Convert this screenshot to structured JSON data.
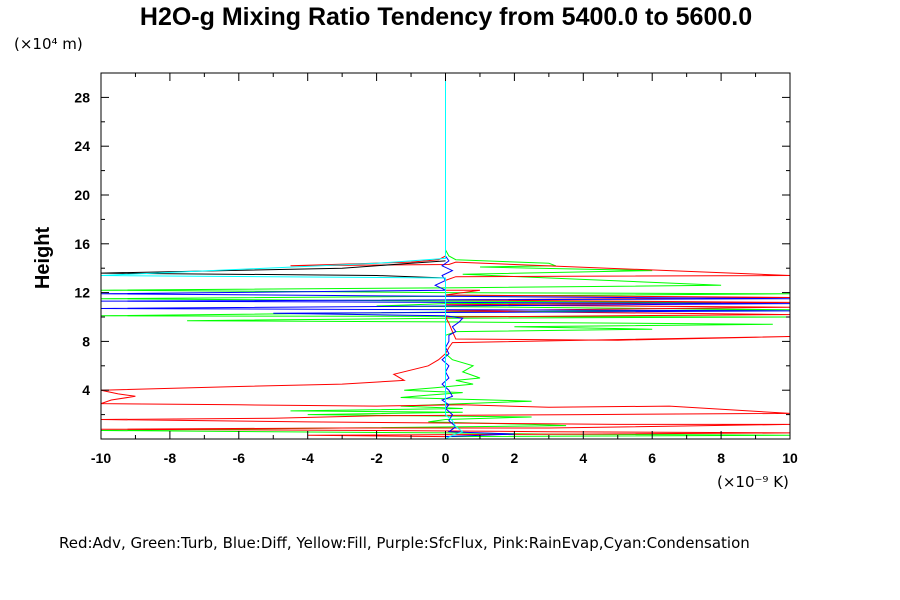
{
  "chart_data": {
    "type": "line",
    "title": "H2O-g Mixing Ratio Tendency from 5400.0 to 5600.0",
    "ylabel": "Height",
    "y_multiplier": "(×10⁴ m)",
    "x_multiplier": "(×10⁻⁹ K)",
    "xlim": [
      -10,
      10
    ],
    "ylim": [
      0,
      30
    ],
    "x_ticks": [
      "-10",
      "-8",
      "-6",
      "-4",
      "-2",
      "0",
      "2",
      "4",
      "6",
      "8",
      "10"
    ],
    "y_ticks": [
      "4",
      "8",
      "12",
      "16",
      "20",
      "24",
      "28"
    ],
    "grid": false,
    "legend_text": "Red:Adv, Green:Turb, Blue:Diff, Yellow:Fill, Purple:SfcFlux, Pink:RainEvap,Cyan:Condensation",
    "series": [
      {
        "name": "Red:Adv",
        "color": "#ff0000",
        "points": [
          [
            0,
            15.0
          ],
          [
            -0.2,
            14.7
          ],
          [
            -1.0,
            14.5
          ],
          [
            -4.5,
            14.2
          ],
          [
            0.1,
            14.3
          ],
          [
            0.3,
            14.5
          ],
          [
            10,
            13.4
          ],
          [
            0.3,
            13.3
          ],
          [
            0,
            13.0
          ],
          [
            0,
            12.2
          ],
          [
            1,
            12.2
          ],
          [
            0,
            11.8
          ],
          [
            10,
            11.6
          ],
          [
            0,
            11.4
          ],
          [
            10,
            11.2
          ],
          [
            0,
            11.0
          ],
          [
            10,
            10.8
          ],
          [
            0,
            10.5
          ],
          [
            10,
            10.2
          ],
          [
            0,
            10.0
          ],
          [
            0.1,
            9.5
          ],
          [
            0.2,
            8.8
          ],
          [
            0.3,
            8.2
          ],
          [
            5,
            8.1
          ],
          [
            10,
            8.4
          ],
          [
            0.2,
            7.9
          ],
          [
            0.1,
            7.5
          ],
          [
            0,
            7.0
          ],
          [
            -0.2,
            6.5
          ],
          [
            -0.5,
            6.0
          ],
          [
            -1.5,
            5.3
          ],
          [
            -1.2,
            4.8
          ],
          [
            -3,
            4.5
          ],
          [
            -6,
            4.3
          ],
          [
            -10,
            4.0
          ],
          [
            -9.5,
            3.7
          ],
          [
            -9,
            3.5
          ],
          [
            -9.7,
            3.2
          ],
          [
            -10,
            2.9
          ],
          [
            -6,
            2.8
          ],
          [
            -2,
            2.7
          ],
          [
            0.5,
            2.8
          ],
          [
            3,
            2.6
          ],
          [
            6.5,
            2.7
          ],
          [
            10,
            2.1
          ],
          [
            4,
            2.0
          ],
          [
            -2,
            1.9
          ],
          [
            -5,
            1.7
          ],
          [
            -10,
            1.6
          ],
          [
            -4,
            1.4
          ],
          [
            0.5,
            1.3
          ],
          [
            5,
            1.2
          ],
          [
            10,
            1.2
          ],
          [
            3,
            0.9
          ],
          [
            -3,
            0.9
          ],
          [
            -10,
            0.8
          ],
          [
            -2,
            0.7
          ],
          [
            3,
            0.6
          ],
          [
            10,
            0.5
          ],
          [
            4,
            0.4
          ],
          [
            -4,
            0.3
          ],
          [
            0,
            0.2
          ],
          [
            0,
            0
          ]
        ]
      },
      {
        "name": "Green:Turb",
        "color": "#00ff00",
        "points": [
          [
            0,
            15.5
          ],
          [
            0.1,
            15.0
          ],
          [
            0.3,
            14.7
          ],
          [
            3,
            14.4
          ],
          [
            3.2,
            14.2
          ],
          [
            1,
            14.1
          ],
          [
            6,
            13.8
          ],
          [
            0.5,
            13.5
          ],
          [
            8,
            12.6
          ],
          [
            0.5,
            12.4
          ],
          [
            -10,
            12.2
          ],
          [
            0,
            12.0
          ],
          [
            10,
            11.9
          ],
          [
            0,
            11.7
          ],
          [
            -10,
            11.5
          ],
          [
            0,
            11.3
          ],
          [
            8,
            11.2
          ],
          [
            0,
            11.1
          ],
          [
            -2,
            10.9
          ],
          [
            10,
            10.6
          ],
          [
            0,
            10.4
          ],
          [
            -10,
            10.1
          ],
          [
            10,
            10.0
          ],
          [
            0,
            9.9
          ],
          [
            -7.5,
            9.7
          ],
          [
            0,
            9.6
          ],
          [
            9.5,
            9.4
          ],
          [
            2,
            9.2
          ],
          [
            6,
            9.0
          ],
          [
            0.3,
            8.8
          ],
          [
            0,
            8.5
          ],
          [
            0,
            7.0
          ],
          [
            0.2,
            6.5
          ],
          [
            0.8,
            6.0
          ],
          [
            0.5,
            5.5
          ],
          [
            1,
            5.0
          ],
          [
            0.3,
            4.8
          ],
          [
            0.8,
            4.5
          ],
          [
            -0.3,
            4.2
          ],
          [
            -1.2,
            4.0
          ],
          [
            0.5,
            3.8
          ],
          [
            -0.5,
            3.6
          ],
          [
            -1.3,
            3.4
          ],
          [
            0,
            3.3
          ],
          [
            2.5,
            3.1
          ],
          [
            0.5,
            2.9
          ],
          [
            -1.3,
            2.7
          ],
          [
            0.5,
            2.5
          ],
          [
            -4.5,
            2.3
          ],
          [
            0.5,
            2.2
          ],
          [
            -4,
            2.0
          ],
          [
            2.5,
            1.8
          ],
          [
            0,
            1.6
          ],
          [
            -0.5,
            1.4
          ],
          [
            2.5,
            1.2
          ],
          [
            3.5,
            1.1
          ],
          [
            -3,
            0.9
          ],
          [
            -10,
            0.7
          ],
          [
            -5,
            0.6
          ],
          [
            0,
            0.5
          ],
          [
            3,
            0.4
          ],
          [
            10,
            0.3
          ],
          [
            0,
            0.2
          ],
          [
            0,
            0
          ]
        ]
      },
      {
        "name": "Blue:Diff",
        "color": "#0000ff",
        "points": [
          [
            0,
            15.0
          ],
          [
            0.1,
            14.6
          ],
          [
            -0.1,
            14.2
          ],
          [
            0.2,
            13.8
          ],
          [
            -0.1,
            13.4
          ],
          [
            0,
            13.0
          ],
          [
            -0.3,
            12.6
          ],
          [
            0,
            12.2
          ],
          [
            -10,
            11.9
          ],
          [
            0,
            11.7
          ],
          [
            10,
            11.5
          ],
          [
            -10,
            11.3
          ],
          [
            10,
            11.1
          ],
          [
            0,
            10.9
          ],
          [
            -10,
            10.7
          ],
          [
            10,
            10.5
          ],
          [
            -5,
            10.3
          ],
          [
            0,
            10.1
          ],
          [
            0.5,
            9.9
          ],
          [
            0.4,
            9.6
          ],
          [
            0.2,
            9.2
          ],
          [
            0.3,
            8.8
          ],
          [
            0.1,
            8.5
          ],
          [
            0.1,
            8.0
          ],
          [
            0,
            7.5
          ],
          [
            0.1,
            7.0
          ],
          [
            -0.1,
            6.5
          ],
          [
            0.1,
            6.0
          ],
          [
            0,
            5.5
          ],
          [
            0.1,
            5.0
          ],
          [
            -0.1,
            4.5
          ],
          [
            0.1,
            4.0
          ],
          [
            0.2,
            3.5
          ],
          [
            -0.1,
            3.2
          ],
          [
            0.1,
            2.8
          ],
          [
            0,
            2.5
          ],
          [
            0.2,
            2.0
          ],
          [
            0.1,
            1.5
          ],
          [
            0.3,
            1.0
          ],
          [
            0.1,
            0.6
          ],
          [
            2,
            0.4
          ],
          [
            0,
            0.2
          ],
          [
            0,
            0
          ]
        ]
      },
      {
        "name": "Black",
        "color": "#000000",
        "points": [
          [
            0,
            14.6
          ],
          [
            -1,
            14.4
          ],
          [
            -3,
            14.0
          ],
          [
            -10,
            13.6
          ],
          [
            -2,
            13.4
          ],
          [
            0,
            13.2
          ]
        ]
      },
      {
        "name": "Cyan:Condensation",
        "color": "#00ffff",
        "points": [
          [
            0,
            30.0
          ],
          [
            0,
            16.0
          ],
          [
            0,
            14.8
          ],
          [
            -2,
            14.4
          ],
          [
            -10,
            13.4
          ],
          [
            0,
            13.2
          ],
          [
            0,
            12.0
          ],
          [
            0,
            8.0
          ],
          [
            0,
            4.0
          ],
          [
            0,
            2.0
          ],
          [
            0.2,
            1.5
          ],
          [
            0.3,
            1.0
          ],
          [
            0.5,
            0.6
          ],
          [
            0.2,
            0.3
          ],
          [
            0,
            0
          ]
        ]
      }
    ]
  }
}
